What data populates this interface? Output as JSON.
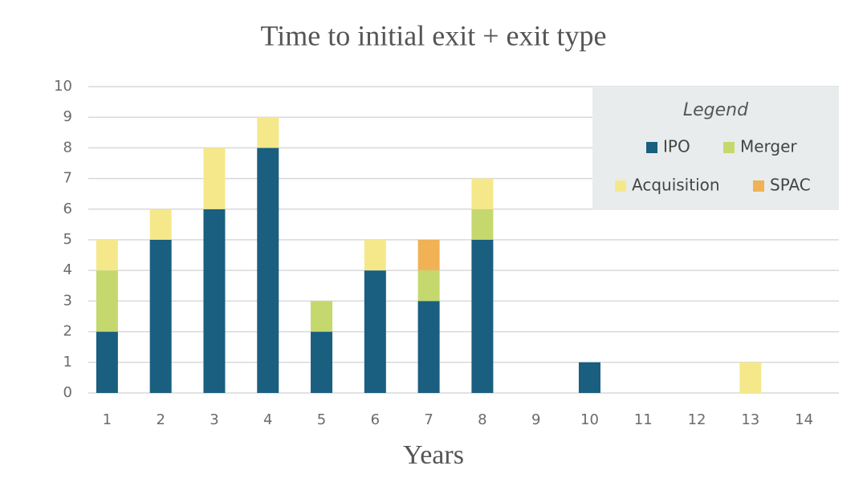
{
  "chart_data": {
    "type": "stacked_bar",
    "title": "Time to initial exit + exit type",
    "x_label": "Years",
    "categories": [
      "1",
      "2",
      "3",
      "4",
      "5",
      "6",
      "7",
      "8",
      "9",
      "10",
      "11",
      "12",
      "13",
      "14"
    ],
    "series": [
      {
        "name": "IPO",
        "color": "#1a5e80",
        "values": [
          2,
          5,
          6,
          8,
          2,
          4,
          3,
          5,
          0,
          1,
          0,
          0,
          0,
          0
        ]
      },
      {
        "name": "Merger",
        "color": "#c5d86d",
        "values": [
          2,
          0,
          0,
          0,
          1,
          0,
          1,
          1,
          0,
          0,
          0,
          0,
          0,
          0
        ]
      },
      {
        "name": "Acquisition",
        "color": "#f5e88a",
        "values": [
          1,
          1,
          2,
          1,
          0,
          1,
          0,
          1,
          0,
          0,
          0,
          0,
          1,
          0
        ]
      },
      {
        "name": "SPAC",
        "color": "#f0b255",
        "values": [
          0,
          0,
          0,
          0,
          0,
          0,
          1,
          0,
          0,
          0,
          0,
          0,
          0,
          0
        ]
      }
    ],
    "ylim": [
      0,
      10
    ],
    "yticks": [
      0,
      1,
      2,
      3,
      4,
      5,
      6,
      7,
      8,
      9,
      10
    ],
    "grid": true,
    "legend_title": "Legend",
    "legend": "upper right"
  }
}
